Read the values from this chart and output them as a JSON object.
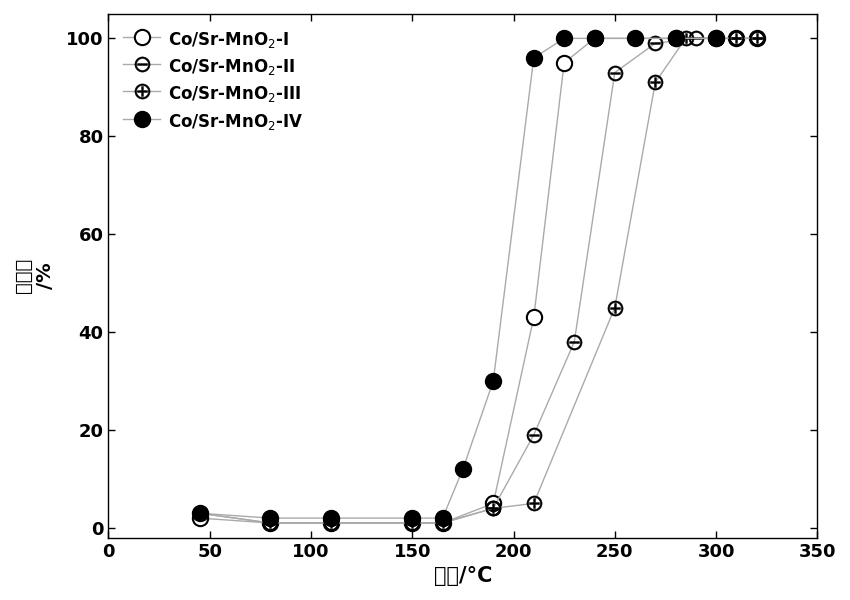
{
  "series": [
    {
      "label": "Co/Sr-MnO$_2$-I",
      "marker_type": "open_circle",
      "x": [
        45,
        80,
        110,
        150,
        165,
        190,
        210,
        225,
        240,
        280,
        300,
        310,
        320
      ],
      "y": [
        2,
        1,
        1,
        1,
        1,
        5,
        43,
        95,
        100,
        100,
        100,
        100,
        100
      ]
    },
    {
      "label": "Co/Sr-MnO$_2$-II",
      "marker_type": "dash_circle",
      "x": [
        45,
        80,
        110,
        150,
        165,
        190,
        210,
        230,
        250,
        270,
        290,
        310,
        320
      ],
      "y": [
        3,
        1,
        1,
        1,
        1,
        4,
        19,
        38,
        93,
        99,
        100,
        100,
        100
      ]
    },
    {
      "label": "Co/Sr-MnO$_2$-III",
      "marker_type": "plus_circle",
      "x": [
        45,
        80,
        110,
        150,
        165,
        190,
        210,
        250,
        270,
        285,
        300,
        310,
        320
      ],
      "y": [
        3,
        1,
        1,
        1,
        1,
        4,
        5,
        45,
        91,
        100,
        100,
        100,
        100
      ]
    },
    {
      "label": "Co/Sr-MnO$_2$-IV",
      "marker_type": "filled_circle",
      "x": [
        45,
        80,
        110,
        150,
        165,
        175,
        190,
        210,
        225,
        240,
        260,
        280,
        300
      ],
      "y": [
        3,
        2,
        2,
        2,
        2,
        12,
        30,
        96,
        100,
        100,
        100,
        100,
        100
      ]
    }
  ],
  "xlabel": "温度/°C",
  "ylabel": "转化率\n/%",
  "xlim": [
    0,
    350
  ],
  "ylim": [
    -2,
    105
  ],
  "xticks": [
    0,
    50,
    100,
    150,
    200,
    250,
    300,
    350
  ],
  "yticks": [
    0,
    20,
    40,
    60,
    80,
    100
  ],
  "background_color": "#ffffff",
  "line_color": "#aaaaaa",
  "line_style": "-",
  "line_width": 1.0,
  "marker_size": 11,
  "marker_edge_width": 1.5
}
